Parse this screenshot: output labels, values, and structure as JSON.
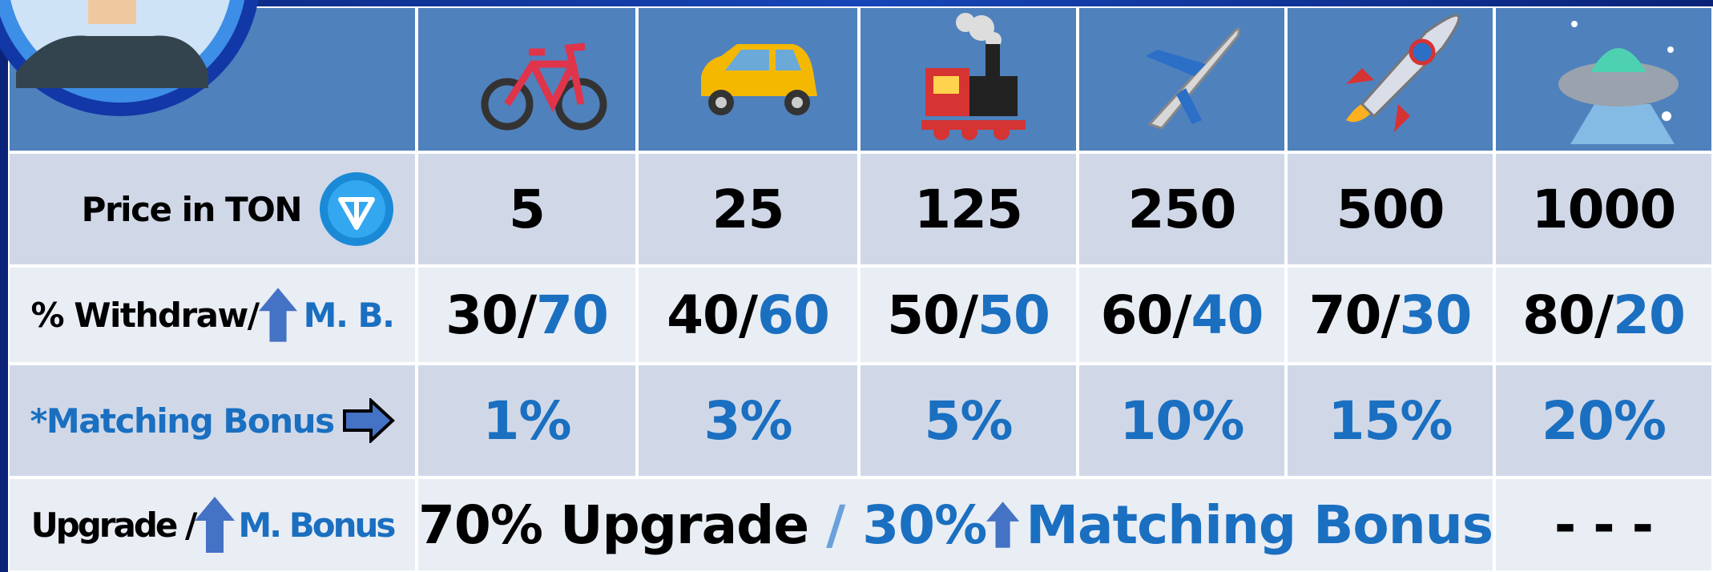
{
  "price": {
    "label": "Price in TON",
    "values": [
      5,
      25,
      125,
      250,
      500,
      1000
    ]
  },
  "withdraw": {
    "label": "% Withdraw/",
    "label_suffix": "M. B.",
    "values": [
      {
        "withdraw": "30/",
        "bonus": "70"
      },
      {
        "withdraw": "40/",
        "bonus": "60"
      },
      {
        "withdraw": "50/",
        "bonus": "50"
      },
      {
        "withdraw": "60/",
        "bonus": "40"
      },
      {
        "withdraw": "70/",
        "bonus": "30"
      },
      {
        "withdraw": "80/",
        "bonus": "20"
      }
    ]
  },
  "matching": {
    "label": "*Matching Bonus",
    "values": [
      "1%",
      "3%",
      "5%",
      "10%",
      "15%",
      "20%"
    ]
  },
  "upgrade": {
    "label": "Upgrade /",
    "label_suffix": "M. Bonus",
    "upgrade": "70% Upgrade",
    "separator": "/",
    "bonus_percent": "30%",
    "bonus": "Matching Bonus",
    "last": "- - -"
  }
}
